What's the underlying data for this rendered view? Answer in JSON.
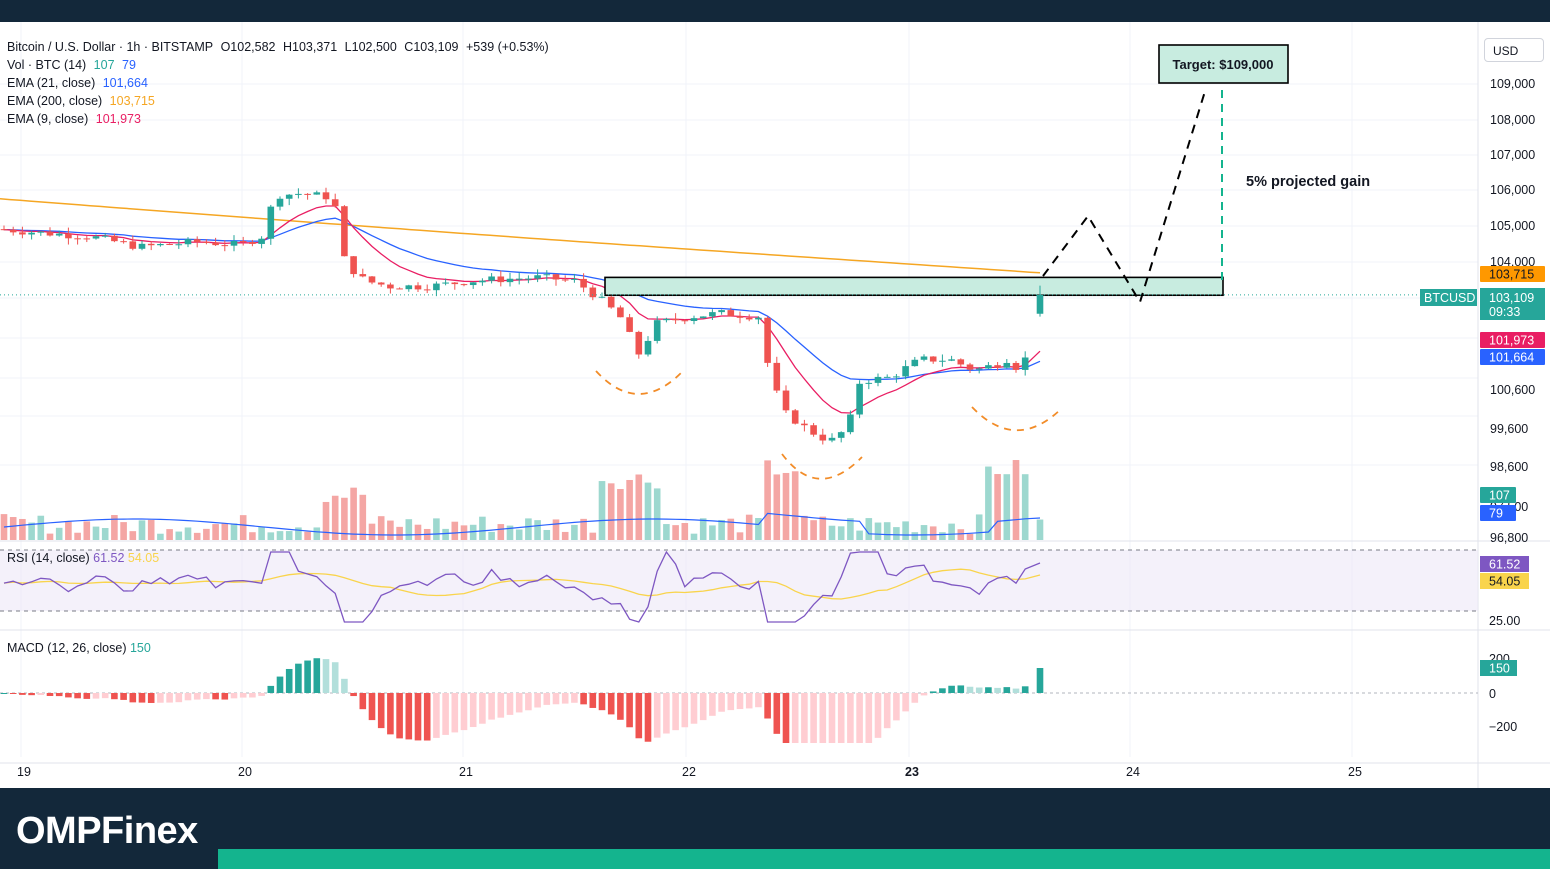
{
  "header": {
    "symbol_line": {
      "symbol": "Bitcoin / U.S. Dollar · 1h · BITSTAMP",
      "open": "O102,582",
      "high": "H103,371",
      "low": "L102,500",
      "close": "C103,109",
      "change": "+539 (+0.53%)"
    },
    "volume_line": {
      "label": "Vol · BTC (14)",
      "v1": "107",
      "v2": "79"
    },
    "ema21_line": {
      "label": "EMA (21, close)",
      "value": "101,664"
    },
    "ema200_line": {
      "label": "EMA (200, close)",
      "value": "103,715"
    },
    "ema9_line": {
      "label": "EMA (9, close)",
      "value": "101,973"
    }
  },
  "currency": "USD",
  "colors": {
    "up": "#26a69a",
    "down": "#ef5350",
    "ema200": "#f5a623",
    "ema21": "#2962ff",
    "ema9": "#e91e63",
    "rsi": "#7e57c2",
    "rsi_ma": "#f9d44c",
    "zone": "#c8ece0",
    "brand_green": "#14b48e"
  },
  "annotations": {
    "target": "Target: $109,000",
    "projected_gain": "5% projected gain"
  },
  "price_axis": {
    "ticks": [
      "109,000",
      "108,000",
      "107,000",
      "106,000",
      "105,000",
      "104,000",
      "100,600",
      "99,600",
      "98,600",
      "97,500",
      "96,800"
    ],
    "badges": {
      "ema200": "103,715",
      "symbol": "BTCUSD",
      "last": "103,109",
      "countdown": "09:33",
      "ema9": "101,973",
      "ema21": "101,664",
      "vol1": "107",
      "vol2": "79"
    }
  },
  "rsi_pane": {
    "label": "RSI (14, close)",
    "value": "61.52",
    "ma_value": "54.05",
    "axis_tick": "25.00"
  },
  "macd_pane": {
    "label": "MACD (12, 26, close)",
    "value": "150",
    "axis_ticks": [
      "200",
      "0",
      "−200"
    ]
  },
  "x_axis_labels": [
    "19",
    "20",
    "21",
    "22",
    "23",
    "24",
    "25"
  ],
  "brand": {
    "name_a": "OMPF",
    "name_b": "inex"
  },
  "chart_data": {
    "type": "candlestick",
    "title": "Bitcoin / U.S. Dollar · 1h · BITSTAMP",
    "x_days": [
      "19",
      "20",
      "21",
      "22",
      "23",
      "24",
      "25"
    ],
    "y_unit": "USD",
    "ylim": [
      96800,
      109500
    ],
    "series": [
      {
        "name": "EMA (200, close)",
        "last": 103715
      },
      {
        "name": "EMA (21, close)",
        "last": 101664
      },
      {
        "name": "EMA (9, close)",
        "last": 101973
      }
    ],
    "last_candle": {
      "open": 102582,
      "high": 103371,
      "low": 102500,
      "close": 103109,
      "change": 539,
      "change_pct": 0.53
    },
    "resistance_zone": [
      103100,
      103600
    ],
    "target": 109000,
    "projected_gain_pct": 5,
    "rsi": {
      "value": 61.52,
      "ma": 54.05
    },
    "macd": {
      "value": 150
    },
    "volume": {
      "v1": 107,
      "v2": 79
    }
  }
}
